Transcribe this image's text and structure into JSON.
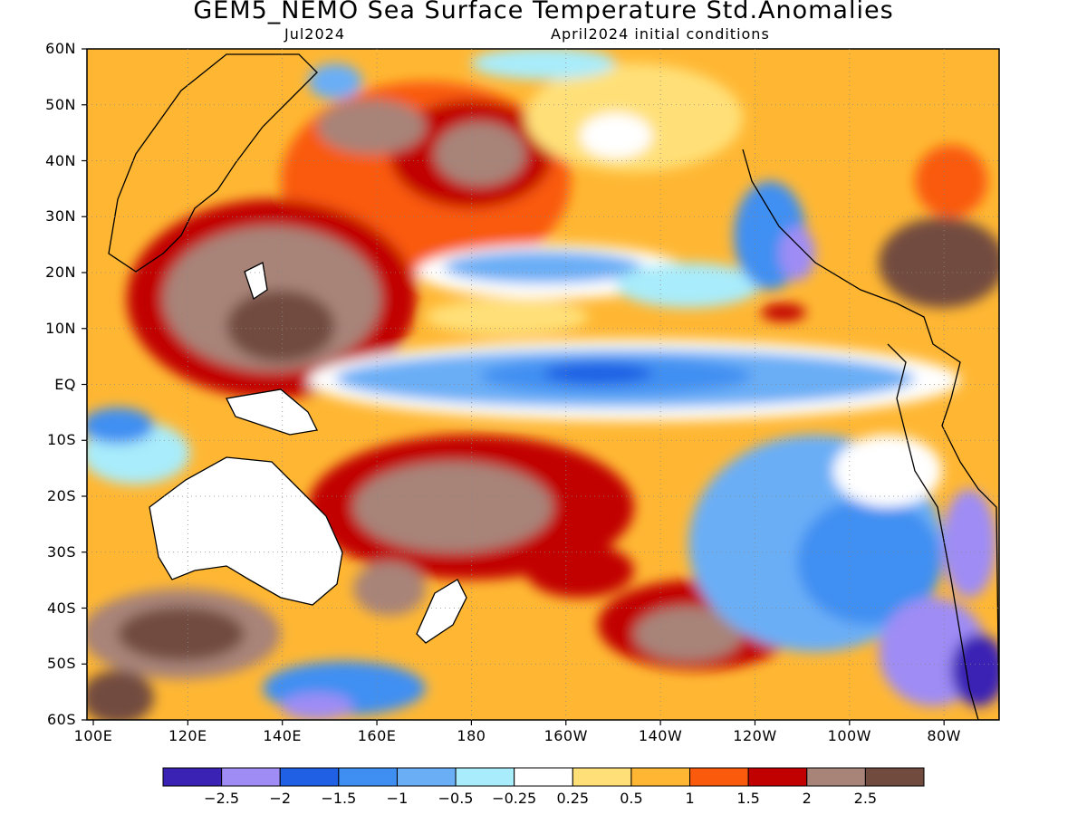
{
  "title": "GEM5_NEMO Sea Surface Temperature Std.Anomalies",
  "subtitle_left": "Jul2024",
  "subtitle_right": "April2024 initial conditions",
  "lat_labels": [
    "60N",
    "50N",
    "40N",
    "30N",
    "20N",
    "10N",
    "EQ",
    "10S",
    "20S",
    "30S",
    "40S",
    "50S",
    "60S"
  ],
  "lon_labels": [
    "100E",
    "120E",
    "140E",
    "160E",
    "180",
    "160W",
    "140W",
    "120W",
    "100W",
    "80W"
  ],
  "colorbar": {
    "colors": [
      "#3a22b5",
      "#9f8cf5",
      "#1f60e4",
      "#3f8ff2",
      "#6aaef6",
      "#a9ecfb",
      "#ffffff",
      "#ffe078",
      "#ffb733",
      "#f95a0c",
      "#c10000",
      "#a88378",
      "#724b3f"
    ],
    "labels": [
      "−2.5",
      "−2",
      "−1.5",
      "−1",
      "−0.5",
      "−0.25",
      "0.25",
      "0.5",
      "1",
      "1.5",
      "2",
      "2.5"
    ]
  }
}
